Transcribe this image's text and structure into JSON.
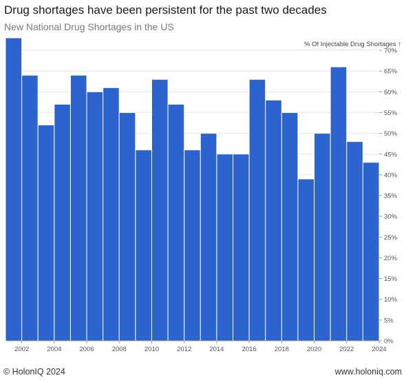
{
  "header": {
    "title": "Drug shortages have been persistent for the past two decades",
    "subtitle": "New National Drug Shortages in the US"
  },
  "footer": {
    "copyright": "© HolonIQ 2024",
    "url": "www.holoniq.com"
  },
  "colors": {
    "bar": "#2c63cf",
    "bar_stroke": "#ffffff",
    "grid": "#e6e6e6",
    "axis_text": "#555555"
  },
  "chart_data": {
    "type": "bar",
    "title": "Drug shortages have been persistent for the past two decades",
    "subtitle": "New National Drug Shortages in the US",
    "ylabel": "% Of Injectable Drug Shortages ↑",
    "ylabel_position": "top-right",
    "ylim": [
      0,
      72
    ],
    "yticks": [
      0,
      5,
      10,
      15,
      20,
      25,
      30,
      35,
      40,
      45,
      50,
      55,
      60,
      65,
      70
    ],
    "ytick_labels": [
      "0%",
      "5%",
      "10%",
      "15%",
      "20%",
      "25%",
      "30%",
      "35%",
      "40%",
      "45%",
      "50%",
      "55%",
      "60%",
      "65%",
      "70%"
    ],
    "xlim": [
      2001,
      2024
    ],
    "xticks": [
      2002,
      2004,
      2006,
      2008,
      2010,
      2012,
      2014,
      2016,
      2018,
      2020,
      2022,
      2024
    ],
    "xtick_labels": [
      "2002",
      "2004",
      "2006",
      "2008",
      "2010",
      "2012",
      "2014",
      "2016",
      "2018",
      "2020",
      "2022",
      "2024"
    ],
    "grid": true,
    "x": [
      2001,
      2002,
      2003,
      2004,
      2005,
      2006,
      2007,
      2008,
      2009,
      2010,
      2011,
      2012,
      2013,
      2014,
      2015,
      2016,
      2017,
      2018,
      2019,
      2020,
      2021,
      2022,
      2023
    ],
    "values": [
      73,
      64,
      52,
      57,
      64,
      60,
      61,
      55,
      46,
      63,
      57,
      46,
      50,
      45,
      45,
      63,
      58,
      55,
      39,
      50,
      66,
      48,
      43
    ]
  }
}
